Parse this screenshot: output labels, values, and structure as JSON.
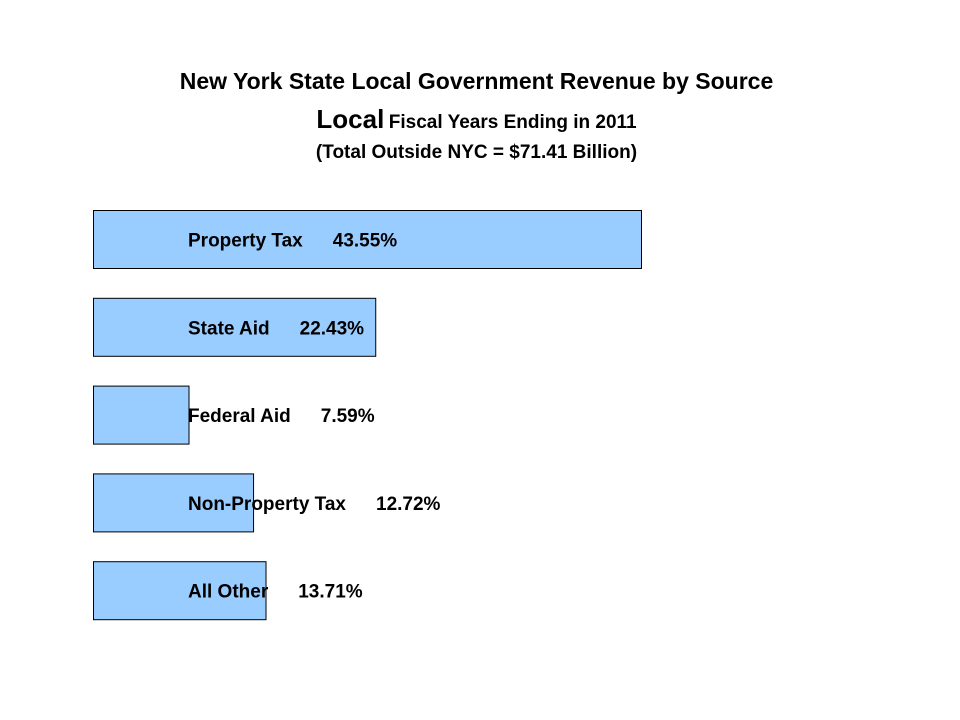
{
  "chart_data": {
    "type": "bar",
    "orientation": "horizontal",
    "title": "New York State Local Government Revenue by Source",
    "subtitle_lead": "Local",
    "subtitle_rest": "Fiscal Years Ending in 2011",
    "subtitle2": "(Total Outside NYC = $71.41 Billion)",
    "categories": [
      "Property Tax",
      "State Aid",
      "Federal Aid",
      "Non-Property Tax",
      "All Other"
    ],
    "values": [
      43.55,
      22.43,
      7.59,
      12.72,
      13.71
    ],
    "value_labels": [
      "43.55%",
      "22.43%",
      "7.59%",
      "12.72%",
      "13.71%"
    ],
    "xlabel": "",
    "ylabel": "",
    "xlim": [
      0,
      43.55
    ],
    "grid": false,
    "legend": "none",
    "bar_color": "#99CCFF",
    "bar_edge_color": "#000000"
  }
}
